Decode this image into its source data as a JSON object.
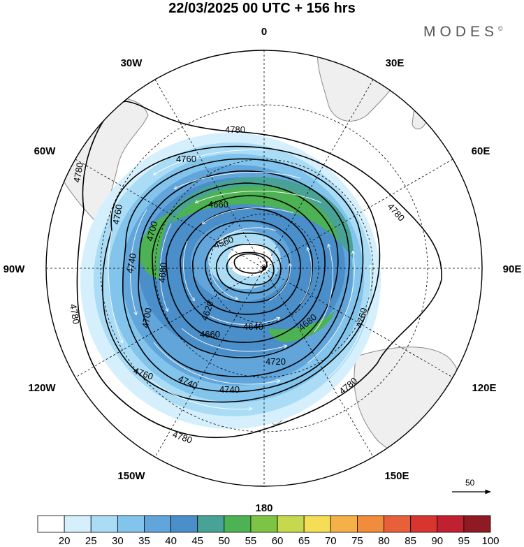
{
  "header": {
    "title": "22/03/2025  00 UTC  + 156 hrs",
    "brand": "MODES",
    "brand_mark": "©"
  },
  "map": {
    "projection": "polar-stereographic-south",
    "longitude_labels": {
      "top": "0",
      "top_left": "30W",
      "top_right": "30E",
      "upper_left": "60W",
      "upper_right": "60E",
      "left": "90W",
      "right": "90E",
      "lower_left": "120W",
      "lower_right": "120E",
      "bottom_left": "150W",
      "bottom_right": "150E",
      "bottom": "180"
    },
    "contour_labels": [
      "4780",
      "4760",
      "4780",
      "4760",
      "4660",
      "4780",
      "4740",
      "4700",
      "4560",
      "4680",
      "4620",
      "4760",
      "4640",
      "4660",
      "4680",
      "4720",
      "4700",
      "4780",
      "4760",
      "4740",
      "4740",
      "4780",
      "4780"
    ],
    "wind_reference": "50",
    "colors": {
      "land": "#efefef",
      "grid": "#000000"
    }
  },
  "colorbar": {
    "labels": [
      "20",
      "25",
      "30",
      "35",
      "40",
      "45",
      "50",
      "55",
      "60",
      "65",
      "70",
      "75",
      "80",
      "85",
      "90",
      "95",
      "100"
    ],
    "colors": [
      "#ffffff",
      "#d5f0fc",
      "#aadcf6",
      "#82c4ec",
      "#61a5db",
      "#4a8fca",
      "#48a396",
      "#4db253",
      "#7ec444",
      "#c6d94e",
      "#f5dd56",
      "#f6b048",
      "#f08c3b",
      "#e8603a",
      "#d8352f",
      "#bf2130",
      "#8f1a24"
    ]
  }
}
